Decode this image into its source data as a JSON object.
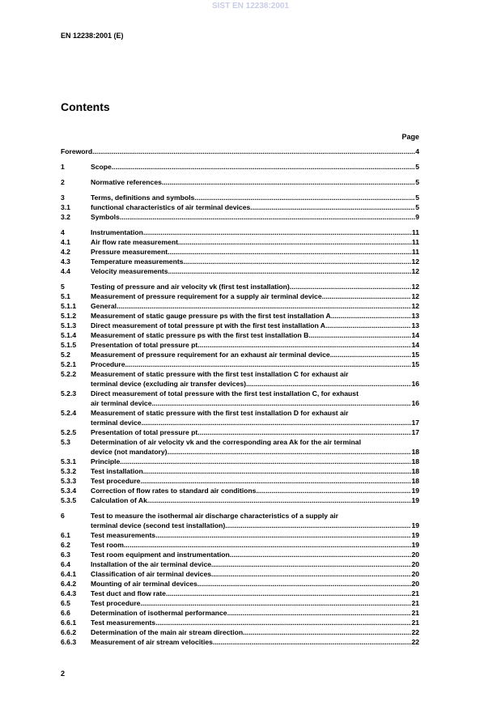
{
  "watermark": "SIST EN 12238:2001",
  "header": "EN 12238:2001 (E)",
  "title": "Contents",
  "page_label": "Page",
  "footer": "2",
  "groups": [
    [
      {
        "num": null,
        "title": "Foreword",
        "page": "4"
      }
    ],
    [
      {
        "num": "1",
        "title": "Scope",
        "page": "5"
      }
    ],
    [
      {
        "num": "2",
        "title": "Normative references",
        "page": "5"
      }
    ],
    [
      {
        "num": "3",
        "title": "Terms, definitions and symbols",
        "page": "5"
      },
      {
        "num": "3.1",
        "title": "functional characteristics of air terminal devices",
        "page": "5"
      },
      {
        "num": "3.2",
        "title": "Symbols",
        "page": "9"
      }
    ],
    [
      {
        "num": "4",
        "title": "Instrumentation",
        "page": "11"
      },
      {
        "num": "4.1",
        "title": "Air flow rate measurement",
        "page": "11"
      },
      {
        "num": "4.2",
        "title": "Pressure measurement",
        "page": "11"
      },
      {
        "num": "4.3",
        "title": "Temperature measurements",
        "page": "12"
      },
      {
        "num": "4.4",
        "title": "Velocity measurements",
        "page": "12"
      }
    ],
    [
      {
        "num": "5",
        "title": "Testing of pressure and air velocity vk (first test installation)",
        "page": "12"
      },
      {
        "num": "5.1",
        "title": "Measurement of pressure requirement for a supply air terminal device",
        "page": "12"
      },
      {
        "num": "5.1.1",
        "title": "General",
        "page": "12"
      },
      {
        "num": "5.1.2",
        "title": "Measurement of static gauge pressure ps with the first test installation A",
        "page": "13"
      },
      {
        "num": "5.1.3",
        "title": "Direct measurement of total pressure pt with the first test installation A",
        "page": "13"
      },
      {
        "num": "5.1.4",
        "title": "Measurement of static pressure ps with the first test installation B",
        "page": "14"
      },
      {
        "num": "5.1.5",
        "title": "Presentation of total pressure pt",
        "page": "14"
      },
      {
        "num": "5.2",
        "title": "Measurement of pressure requirement for an exhaust air terminal device",
        "page": "15"
      },
      {
        "num": "5.2.1",
        "title": "Procedure",
        "page": "15"
      },
      {
        "num": "5.2.2",
        "title": [
          "Measurement of static pressure with the first test installation C for exhaust air",
          "terminal device (excluding air transfer devices)"
        ],
        "page": "16"
      },
      {
        "num": "5.2.3",
        "title": [
          "Direct measurement of total pressure with the first test installation C, for exhaust",
          "air terminal device"
        ],
        "page": "16"
      },
      {
        "num": "5.2.4",
        "title": [
          "Measurement of static pressure with the first test installation D for exhaust air",
          "terminal device"
        ],
        "page": "17"
      },
      {
        "num": "5.2.5",
        "title": "Presentation of total pressure pt",
        "page": "17"
      },
      {
        "num": "5.3",
        "title": [
          "Determination of air velocity vk and the corresponding area Ak for the air terminal",
          "device (not mandatory)"
        ],
        "page": "18"
      },
      {
        "num": "5.3.1",
        "title": "Principle",
        "page": "18"
      },
      {
        "num": "5.3.2",
        "title": "Test installation",
        "page": "18"
      },
      {
        "num": "5.3.3",
        "title": "Test procedure",
        "page": "18"
      },
      {
        "num": "5.3.4",
        "title": "Correction of flow rates to standard air conditions",
        "page": "19"
      },
      {
        "num": "5.3.5",
        "title": "Calculation of Ak",
        "page": "19"
      }
    ],
    [
      {
        "num": "6",
        "title": [
          "Test to measure the isothermal air discharge characteristics of a supply air",
          "terminal device (second test installation)"
        ],
        "page": "19"
      },
      {
        "num": "6.1",
        "title": "Test measurements",
        "page": "19"
      },
      {
        "num": "6.2",
        "title": "Test room",
        "page": "19"
      },
      {
        "num": "6.3",
        "title": "Test room equipment and instrumentation",
        "page": "20"
      },
      {
        "num": "6.4",
        "title": "Installation of the air terminal device",
        "page": "20"
      },
      {
        "num": "6.4.1",
        "title": "Classification of air terminal devices",
        "page": "20"
      },
      {
        "num": "6.4.2",
        "title": "Mounting of air terminal devices",
        "page": "20"
      },
      {
        "num": "6.4.3",
        "title": "Test duct and flow rate",
        "page": "21"
      },
      {
        "num": "6.5",
        "title": "Test procedure",
        "page": "21"
      },
      {
        "num": "6.6",
        "title": "Determination of isothermal performance",
        "page": "21"
      },
      {
        "num": "6.6.1",
        "title": "Test measurements",
        "page": "21"
      },
      {
        "num": "6.6.2",
        "title": "Determination of the main air stream direction",
        "page": "22"
      },
      {
        "num": "6.6.3",
        "title": "Measurement of air stream velocities",
        "page": "22"
      }
    ]
  ]
}
